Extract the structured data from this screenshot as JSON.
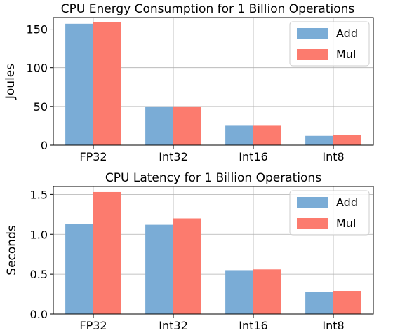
{
  "colors": {
    "add": "#7aacd6",
    "mul": "#fc7b6e"
  },
  "chart_data": [
    {
      "type": "bar",
      "title": "CPU Energy Consumption for 1 Billion Operations",
      "xlabel": "",
      "ylabel": "Joules",
      "ylim": [
        0,
        165
      ],
      "yticks": [
        0,
        50,
        100,
        150
      ],
      "grid": true,
      "legend": "top-right",
      "categories": [
        "FP32",
        "Int32",
        "Int16",
        "Int8"
      ],
      "series": [
        {
          "name": "Add",
          "values": [
            157,
            50,
            25,
            12
          ]
        },
        {
          "name": "Mul",
          "values": [
            159,
            50,
            25,
            13
          ]
        }
      ]
    },
    {
      "type": "bar",
      "title": "CPU Latency for 1 Billion Operations",
      "xlabel": "",
      "ylabel": "Seconds",
      "ylim": [
        0,
        1.6
      ],
      "yticks": [
        0.0,
        0.5,
        1.0,
        1.5
      ],
      "yticklabels": [
        "0.0",
        "0.5",
        "1.0",
        "1.5"
      ],
      "grid": true,
      "legend": "top-right",
      "categories": [
        "FP32",
        "Int32",
        "Int16",
        "Int8"
      ],
      "series": [
        {
          "name": "Add",
          "values": [
            1.13,
            1.12,
            0.55,
            0.28
          ]
        },
        {
          "name": "Mul",
          "values": [
            1.53,
            1.2,
            0.56,
            0.29
          ]
        }
      ]
    }
  ]
}
